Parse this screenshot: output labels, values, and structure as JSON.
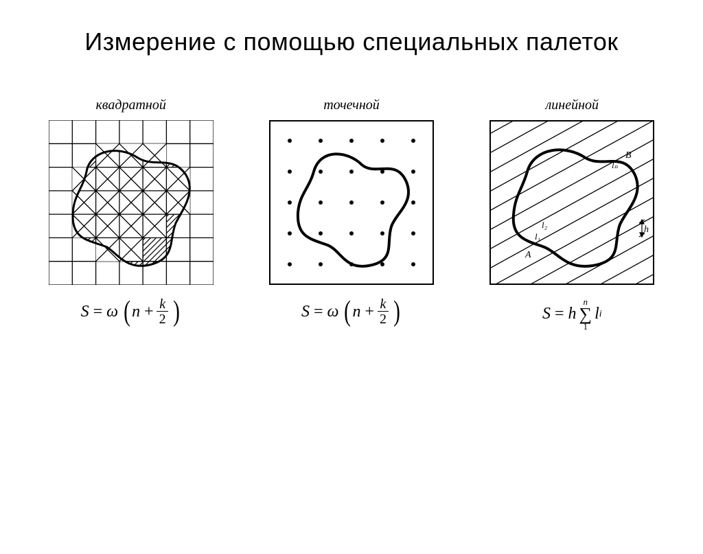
{
  "title": "Измерение с помощью специальных палеток",
  "panels": {
    "square": {
      "label": "квадратной",
      "type": "diagram",
      "grid": {
        "cells": 7,
        "stroke": "#000000",
        "stroke_width": 1.5
      },
      "blob_stroke_width": 3,
      "hatch_angle": 45,
      "cross_cells": [
        [
          2,
          1
        ],
        [
          3,
          1
        ],
        [
          4,
          1
        ],
        [
          1,
          2
        ],
        [
          2,
          2
        ],
        [
          3,
          2
        ],
        [
          4,
          2
        ],
        [
          5,
          2
        ],
        [
          1,
          3
        ],
        [
          2,
          3
        ],
        [
          3,
          3
        ],
        [
          4,
          3
        ],
        [
          5,
          3
        ],
        [
          1,
          4
        ],
        [
          2,
          4
        ],
        [
          3,
          4
        ],
        [
          4,
          4
        ],
        [
          2,
          5
        ],
        [
          3,
          5
        ]
      ],
      "formula": {
        "lhs": "S",
        "op": "=",
        "omega": "ω",
        "n": "n",
        "k": "k",
        "denom": "2"
      }
    },
    "point": {
      "label": "точечной",
      "type": "diagram",
      "border_stroke_width": 2,
      "dot_radius": 3,
      "dot_color": "#000000",
      "grid": {
        "cols": 5,
        "rows": 5,
        "margin": 30
      },
      "blob_stroke_width": 4,
      "formula": {
        "lhs": "S",
        "op": "=",
        "omega": "ω",
        "n": "n",
        "k": "k",
        "denom": "2"
      }
    },
    "linear": {
      "label": "линейной",
      "type": "diagram",
      "border_stroke_width": 2,
      "line_spacing": 28,
      "line_stroke_width": 1.3,
      "blob_stroke_width": 4,
      "labels": {
        "A": "A",
        "B": "B",
        "l1": "l₁",
        "l2": "l₂",
        "ln": "lₙ",
        "h": "h"
      },
      "label_fontsize": 14,
      "formula": {
        "lhs": "S",
        "op": "=",
        "h": "h",
        "upper": "n",
        "lower": "1",
        "li": "l",
        "sub": "i"
      }
    }
  },
  "colors": {
    "background": "#ffffff",
    "ink": "#000000"
  },
  "font": {
    "title_pt": 36,
    "panel_title_pt": 20,
    "formula_pt": 24
  }
}
